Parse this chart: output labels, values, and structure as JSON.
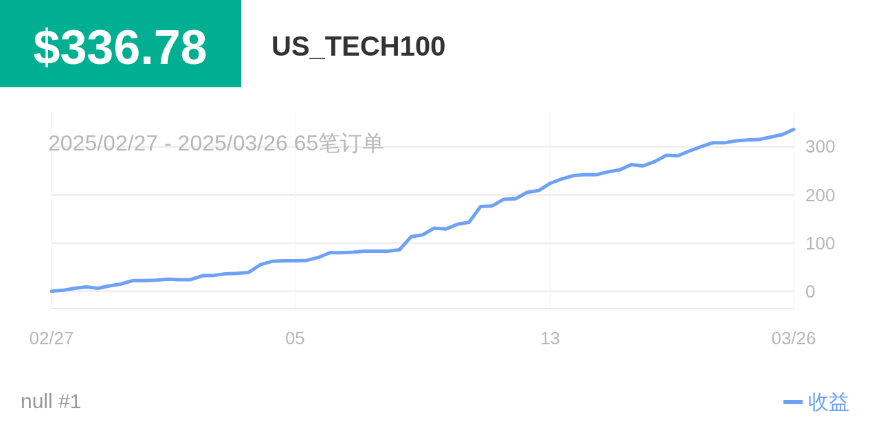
{
  "chart_data": {
    "type": "line",
    "title": "US_TECH100",
    "subtitle": "2025/02/27 - 2025/03/26  65笔订单",
    "annotations": [
      "$336.78",
      "null #1"
    ],
    "categories": [
      "02/27",
      null,
      null,
      null,
      null,
      null,
      null,
      null,
      null,
      null,
      null,
      null,
      null,
      null,
      null,
      null,
      null,
      null,
      null,
      null,
      null,
      "05",
      null,
      null,
      null,
      null,
      null,
      null,
      null,
      null,
      null,
      null,
      null,
      null,
      null,
      null,
      null,
      null,
      null,
      null,
      null,
      null,
      null,
      "13",
      null,
      null,
      null,
      null,
      null,
      null,
      null,
      null,
      null,
      null,
      null,
      null,
      null,
      null,
      null,
      null,
      null,
      null,
      null,
      null,
      "03/26"
    ],
    "series": [
      {
        "name": "收益",
        "color": "#6ea2f7",
        "values": [
          0,
          2,
          6,
          9,
          6,
          11,
          15,
          22,
          22,
          23,
          25,
          24,
          24,
          32,
          33,
          36,
          37,
          39,
          55,
          62,
          63,
          63,
          64,
          70,
          80,
          80,
          81,
          83,
          83,
          83,
          86,
          113,
          117,
          131,
          129,
          139,
          143,
          176,
          177,
          191,
          192,
          205,
          209,
          224,
          233,
          240,
          242,
          242,
          248,
          252,
          263,
          260,
          269,
          282,
          281,
          291,
          300,
          308,
          308,
          312,
          314,
          315,
          320,
          325,
          336
        ]
      }
    ],
    "ylim": [
      -36,
      372
    ],
    "yticks": [
      0,
      100,
      200,
      300
    ],
    "grid": true,
    "legend": "bottom right",
    "line_style": "solid"
  }
}
